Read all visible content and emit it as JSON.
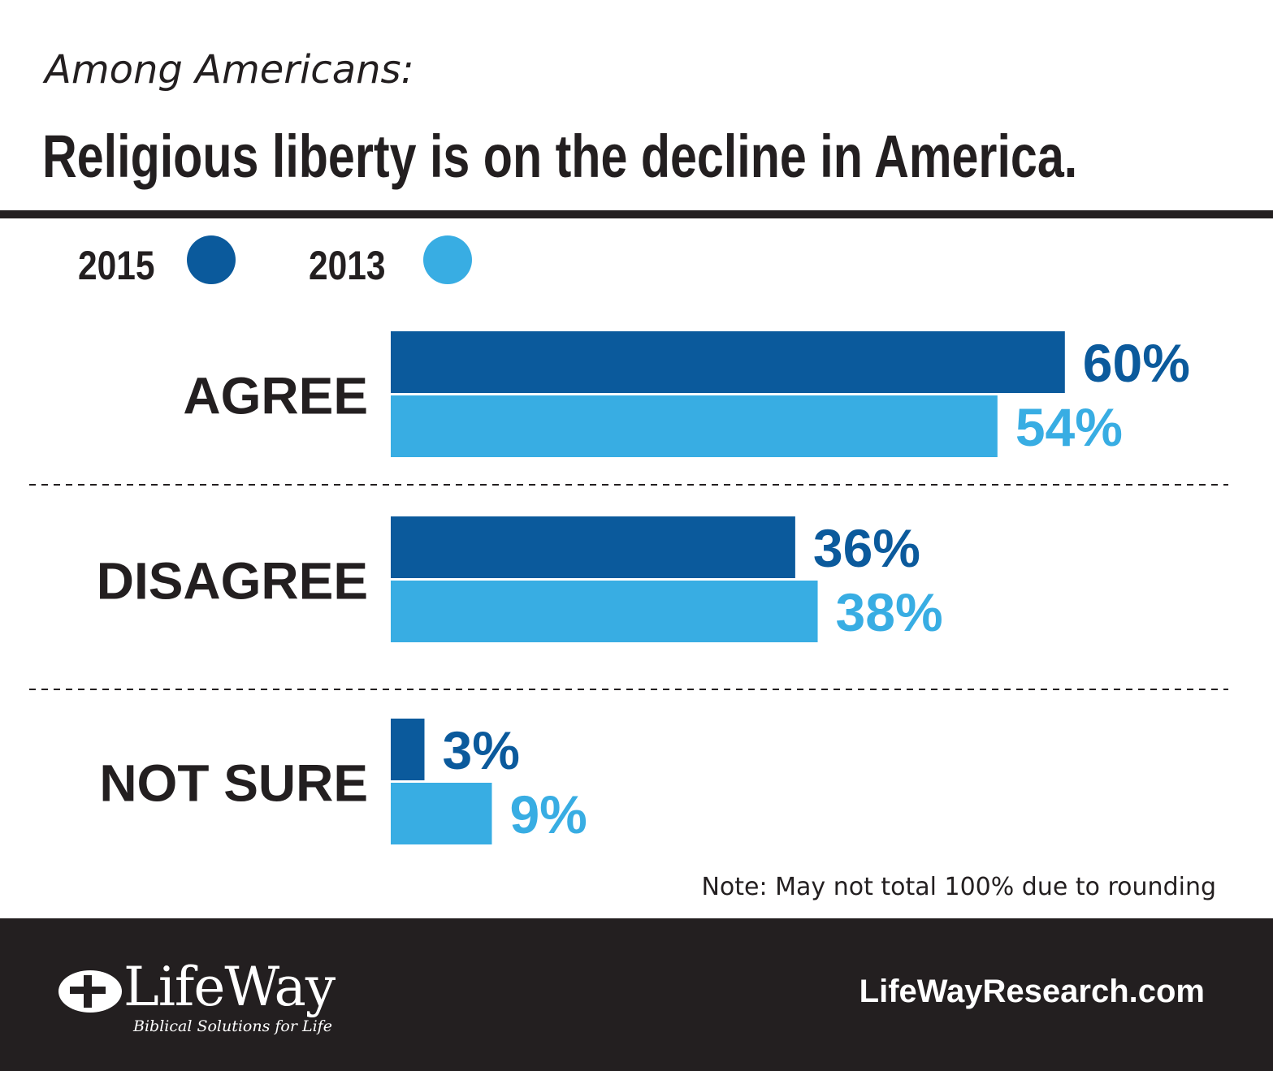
{
  "header": {
    "subtitle": "Among Americans:",
    "title": "Religious liberty is on the decline in America."
  },
  "colors": {
    "series_2015": "#0b5a9c",
    "series_2013": "#38ade3",
    "text": "#231f20",
    "footer_bg": "#231f20"
  },
  "legend": [
    {
      "label": "2015",
      "color": "#0b5a9c"
    },
    {
      "label": "2013",
      "color": "#38ade3"
    }
  ],
  "chart_data": {
    "type": "bar",
    "orientation": "horizontal",
    "categories": [
      "AGREE",
      "DISAGREE",
      "NOT SURE"
    ],
    "series": [
      {
        "name": "2015",
        "values": [
          60,
          36,
          3
        ],
        "labels": [
          "60%",
          "36%",
          "3%"
        ],
        "color": "#0b5a9c"
      },
      {
        "name": "2013",
        "values": [
          54,
          38,
          9
        ],
        "labels": [
          "54%",
          "38%",
          "9%"
        ],
        "color": "#38ade3"
      }
    ],
    "unit": "%",
    "legend_position": "top-left",
    "grid": false,
    "separators": "dashed"
  },
  "note": "Note: May not total 100% due to rounding",
  "footer": {
    "logo_text": "LifeWay",
    "logo_tagline": "Biblical Solutions for Life",
    "website": "LifeWayResearch.com"
  }
}
